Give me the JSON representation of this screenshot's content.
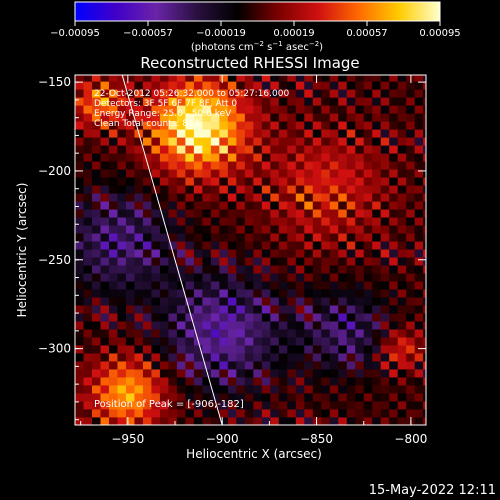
{
  "chart_data": {
    "type": "heatmap",
    "title": "Reconstructed RHESSI Image",
    "colorbar": {
      "ticks": [
        "-0.00095",
        "-0.00057",
        "-0.00019",
        "0.00019",
        "0.00057",
        "0.00095"
      ],
      "range": [
        -0.00095,
        0.00095
      ],
      "colormap": [
        "#0000ff",
        "#4000c8",
        "#6a24a8",
        "#2a1040",
        "#000000",
        "#7a0000",
        "#d01010",
        "#ff6a00",
        "#ffcc00",
        "#ffffcc"
      ]
    },
    "xlabel": "Heliocentric X (arcsec)",
    "ylabel": "Heliocentric Y (arcsec)",
    "xticks": [
      "-950",
      "-900",
      "-850",
      "-800"
    ],
    "yticks": [
      "-150",
      "-200",
      "-250",
      "-300"
    ],
    "xlim": [
      -978,
      -792
    ],
    "ylim": [
      -343,
      -146
    ],
    "annotations": [
      "22-Oct-2012 05:26:32.000 to 05:27:16.000",
      "Detectors: 3F 5F 6F 7F 8F, Att 0",
      "Energy Range: 25.0 - 50.0 keV",
      "Clean  Total counts: 813",
      "Position of Peak = [-906,-182]"
    ],
    "limb_curve": {
      "x": [
        -953,
        -900
      ],
      "y": [
        -146,
        -343
      ]
    },
    "sources": [
      {
        "x": -913,
        "y": -175,
        "sigma": 18,
        "amp": 1.0
      },
      {
        "x": -965,
        "y": -162,
        "sigma": 10,
        "amp": 0.55
      },
      {
        "x": -950,
        "y": -325,
        "sigma": 14,
        "amp": 0.7
      },
      {
        "x": -845,
        "y": -210,
        "sigma": 22,
        "amp": 0.35
      },
      {
        "x": -805,
        "y": -300,
        "sigma": 8,
        "amp": 0.4
      },
      {
        "x": -955,
        "y": -240,
        "sigma": 20,
        "amp": -0.45
      },
      {
        "x": -900,
        "y": -290,
        "sigma": 22,
        "amp": -0.55
      },
      {
        "x": -835,
        "y": -290,
        "sigma": 16,
        "amp": -0.4
      }
    ]
  },
  "footer_timestamp": "15-May-2022 12:11"
}
